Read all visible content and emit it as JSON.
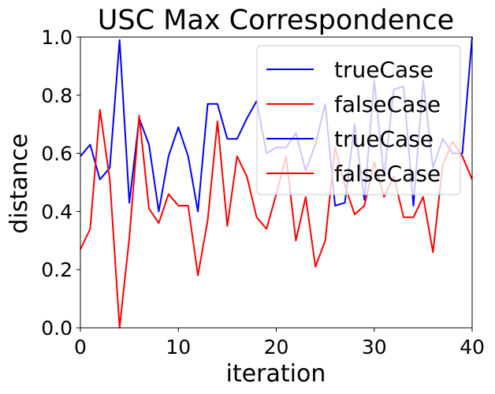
{
  "chart_data": {
    "type": "line",
    "title": "USC Max Correspondence",
    "xlabel": "iteration",
    "ylabel": "distance",
    "xlim": [
      0,
      40
    ],
    "ylim": [
      0,
      1
    ],
    "xticks": [
      0,
      10,
      20,
      30,
      40
    ],
    "yticks": [
      0.0,
      0.2,
      0.4,
      0.6,
      0.8,
      1.0
    ],
    "xtick_labels": [
      "0",
      "10",
      "20",
      "30",
      "40"
    ],
    "ytick_labels": [
      "0.0",
      "0.2",
      "0.4",
      "0.6",
      "0.8",
      "1.0"
    ],
    "legend_position": "top-right",
    "series": [
      {
        "name": "trueCase",
        "color": "#0000ff",
        "x": [
          0,
          1,
          2,
          3,
          4,
          5,
          6,
          7,
          8,
          9,
          10,
          11,
          12,
          13,
          14,
          15,
          16,
          17,
          18,
          19,
          20,
          21,
          22,
          23,
          24,
          25,
          26,
          27,
          28,
          29,
          30,
          31,
          32,
          33,
          34,
          35,
          36,
          37,
          38,
          39,
          40
        ],
        "y": [
          0.59,
          0.63,
          0.51,
          0.55,
          0.99,
          0.43,
          0.72,
          0.63,
          0.4,
          0.59,
          0.69,
          0.59,
          0.4,
          0.77,
          0.77,
          0.65,
          0.65,
          0.72,
          0.78,
          0.6,
          0.62,
          0.62,
          0.67,
          0.54,
          0.63,
          0.77,
          0.42,
          0.43,
          0.7,
          0.44,
          0.85,
          0.52,
          0.82,
          0.83,
          0.42,
          0.85,
          0.55,
          0.65,
          0.6,
          0.6,
          1.0
        ]
      },
      {
        "name": "falseCase",
        "color": "#ff0000",
        "x": [
          0,
          1,
          2,
          3,
          4,
          5,
          6,
          7,
          8,
          9,
          10,
          11,
          12,
          13,
          14,
          15,
          16,
          17,
          18,
          19,
          20,
          21,
          22,
          23,
          24,
          25,
          26,
          27,
          28,
          29,
          30,
          31,
          32,
          33,
          34,
          35,
          36,
          37,
          38,
          39,
          40
        ],
        "y": [
          0.27,
          0.34,
          0.75,
          0.51,
          0.0,
          0.31,
          0.73,
          0.41,
          0.36,
          0.46,
          0.42,
          0.42,
          0.18,
          0.37,
          0.71,
          0.35,
          0.59,
          0.52,
          0.38,
          0.34,
          0.46,
          0.59,
          0.3,
          0.45,
          0.21,
          0.3,
          0.62,
          0.49,
          0.39,
          0.42,
          0.57,
          0.45,
          0.52,
          0.38,
          0.38,
          0.45,
          0.26,
          0.56,
          0.64,
          0.59,
          0.51
        ]
      },
      {
        "name": "trueCase",
        "color": "#0000ff",
        "x": [],
        "y": []
      },
      {
        "name": "falseCase",
        "color": "#ff0000",
        "x": [],
        "y": []
      }
    ]
  }
}
